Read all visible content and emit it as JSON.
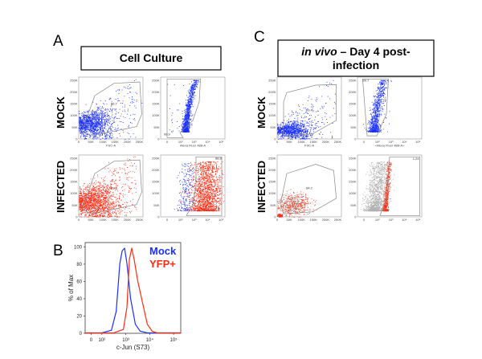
{
  "panels": {
    "A": {
      "letter": "A",
      "title": "Cell Culture"
    },
    "B": {
      "letter": "B"
    },
    "C": {
      "letter": "C",
      "title_italic": "in vivo",
      "title_rest": " – Day 4 post-",
      "title_line2": "infection"
    }
  },
  "row_labels": {
    "mock": "MOCK",
    "infected": "INFECTED"
  },
  "scatter_axes": {
    "linear_ticks": [
      "0",
      "50K",
      "100K",
      "150K",
      "200K",
      "250K"
    ],
    "log_ticks": [
      "0",
      "10²",
      "10³",
      "10⁴",
      "10⁵"
    ],
    "fsc_label": "FSC-A",
    "alexa_label_A": "Alexa Fluor 488-A",
    "alexa_label_C": "<Alexa Fluor 488-A>"
  },
  "gates": {
    "A_mock_fsc": "85.7",
    "A_mock_alexa": "99.9",
    "A_inf_fsc": "82.8",
    "A_inf_alexa": "88.8",
    "C_mock_fsc": "93.4",
    "C_mock_alexa": "99.7",
    "C_inf_fsc": "84.2",
    "C_inf_alexa": "1.24"
  },
  "colors": {
    "mock": "#1a2fff",
    "infected": "#ff2a10",
    "ungated": "#b0b0b0",
    "gate": "#888888"
  },
  "chart_data": {
    "type": "line",
    "xlabel": "c-Jun (S73)",
    "ylabel": "% of Max",
    "xscale": "biexponential/log",
    "xticks": [
      "0",
      "10²",
      "10³",
      "10⁴",
      "10⁵"
    ],
    "yticks": [
      "0",
      "20",
      "40",
      "60",
      "80",
      "100"
    ],
    "ylim": [
      0,
      100
    ],
    "legend": "top-right",
    "series": [
      {
        "name": "Mock",
        "color": "#1a2fff",
        "x_log10": [
          2.0,
          2.4,
          2.6,
          2.75,
          2.85,
          2.95,
          3.05,
          3.2,
          3.4,
          3.6,
          3.9
        ],
        "y": [
          0,
          3,
          25,
          80,
          95,
          98,
          80,
          40,
          10,
          2,
          0
        ]
      },
      {
        "name": "YFP+",
        "color": "#ff2a10",
        "x_log10": [
          2.5,
          2.9,
          3.05,
          3.15,
          3.25,
          3.35,
          3.5,
          3.7,
          3.9,
          4.1,
          4.3
        ],
        "y": [
          0,
          4,
          30,
          85,
          98,
          85,
          60,
          35,
          10,
          2,
          0
        ]
      }
    ]
  }
}
